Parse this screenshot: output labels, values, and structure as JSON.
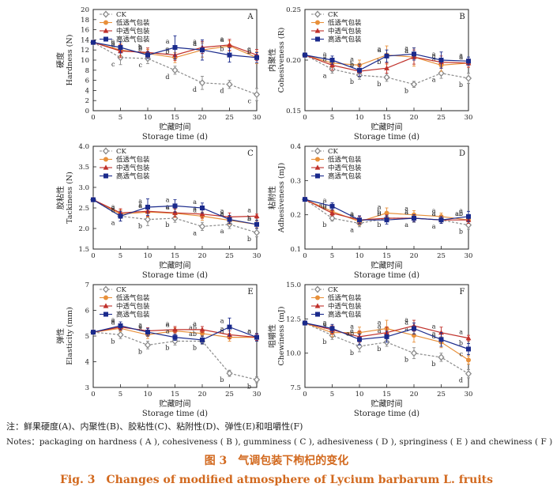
{
  "series_meta": [
    {
      "key": "ck",
      "name": "CK",
      "color": "#8a8a8a",
      "marker": "diamond",
      "dash": true
    },
    {
      "key": "low",
      "name": "低透气包装",
      "color": "#e8903a",
      "marker": "circle",
      "dash": false
    },
    {
      "key": "mid",
      "name": "中透气包装",
      "color": "#c0302a",
      "marker": "triangle",
      "dash": false
    },
    {
      "key": "high",
      "name": "高透气包装",
      "color": "#1a2a8c",
      "marker": "square",
      "dash": false
    }
  ],
  "chart_data": [
    {
      "type": "line",
      "panel": "A",
      "ylabel_cn": "硬度",
      "ylabel_en": "Hardness (N)",
      "xlabel_cn": "贮藏时间",
      "xlabel_en": "Storage time (d)",
      "x": [
        0,
        5,
        10,
        15,
        20,
        25,
        30
      ],
      "xticks": [
        "0",
        "5",
        "10",
        "15",
        "20",
        "25",
        "30"
      ],
      "ylim": [
        0,
        20
      ],
      "yticks": [
        "0",
        "2",
        "4",
        "6",
        "8",
        "10",
        "12",
        "14",
        "16",
        "18",
        "20"
      ],
      "yticks_values": [
        0,
        2,
        4,
        6,
        8,
        10,
        12,
        14,
        16,
        18,
        20
      ],
      "series": [
        {
          "values": [
            13.5,
            10.5,
            10.3,
            8.0,
            5.5,
            5.2,
            3.2
          ],
          "err": [
            0.3,
            1.4,
            1.0,
            0.8,
            1.3,
            0.8,
            1.2
          ],
          "letters": [
            "",
            "c",
            "c",
            "d",
            "d",
            "d",
            "c"
          ]
        },
        {
          "values": [
            13.5,
            12.0,
            11.3,
            10.5,
            12.0,
            12.8,
            10.5
          ],
          "err": [
            0.3,
            1.2,
            0.8,
            1.0,
            1.4,
            1.0,
            1.2
          ],
          "letters": [
            "",
            "b",
            "b",
            "b",
            "a",
            "a",
            "b"
          ]
        },
        {
          "values": [
            13.5,
            11.8,
            11.5,
            11.0,
            12.5,
            13.0,
            11.0
          ],
          "err": [
            0.3,
            1.3,
            0.9,
            1.1,
            1.2,
            1.1,
            1.1
          ],
          "letters": [
            "",
            "a",
            "a",
            "a",
            "a",
            "a",
            "a"
          ]
        },
        {
          "values": [
            13.5,
            12.5,
            11.0,
            12.5,
            12.0,
            11.0,
            10.5
          ],
          "err": [
            0.3,
            1.1,
            0.7,
            2.3,
            2.0,
            1.4,
            1.0
          ],
          "letters": [
            "",
            "a",
            "b",
            "a",
            "a",
            "b",
            "b"
          ]
        }
      ]
    },
    {
      "type": "line",
      "panel": "B",
      "ylabel_cn": "内聚性",
      "ylabel_en": "Cohesiveness (R)",
      "xlabel_cn": "贮藏时间",
      "xlabel_en": "Storage time (d)",
      "x": [
        0,
        5,
        10,
        15,
        20,
        25,
        30
      ],
      "xticks": [
        "0",
        "5",
        "10",
        "15",
        "20",
        "25",
        "30"
      ],
      "ylim": [
        0.15,
        0.25
      ],
      "yticks": [
        "0.15",
        "0.20",
        "0.25"
      ],
      "yticks_values": [
        0.15,
        0.2,
        0.25
      ],
      "series": [
        {
          "values": [
            0.205,
            0.191,
            0.185,
            0.183,
            0.176,
            0.187,
            0.182
          ],
          "err": [
            0.002,
            0.004,
            0.004,
            0.004,
            0.003,
            0.005,
            0.005
          ],
          "letters": [
            "",
            "a",
            "b",
            "b",
            "b",
            "a",
            "b"
          ]
        },
        {
          "values": [
            0.205,
            0.197,
            0.195,
            0.205,
            0.203,
            0.195,
            0.197
          ],
          "err": [
            0.002,
            0.004,
            0.005,
            0.009,
            0.009,
            0.006,
            0.004
          ],
          "letters": [
            "",
            "a",
            "a",
            "a",
            "a",
            "a",
            "a"
          ]
        },
        {
          "values": [
            0.205,
            0.195,
            0.189,
            0.192,
            0.203,
            0.198,
            0.197
          ],
          "err": [
            0.002,
            0.005,
            0.005,
            0.005,
            0.007,
            0.006,
            0.004
          ],
          "letters": [
            "",
            "a",
            "b",
            "b",
            "a",
            "a",
            "a"
          ]
        },
        {
          "values": [
            0.205,
            0.2,
            0.19,
            0.204,
            0.206,
            0.2,
            0.199
          ],
          "err": [
            0.002,
            0.004,
            0.006,
            0.006,
            0.006,
            0.008,
            0.004
          ],
          "letters": [
            "",
            "a",
            "b",
            "a",
            "a",
            "a",
            "a"
          ]
        }
      ]
    },
    {
      "type": "line",
      "panel": "C",
      "ylabel_cn": "胶粘性",
      "ylabel_en": "Tackiness (N)",
      "xlabel_cn": "贮藏时间",
      "xlabel_en": "Storage time (d)",
      "x": [
        0,
        5,
        10,
        15,
        20,
        25,
        30
      ],
      "xticks": [
        "0",
        "5",
        "10",
        "15",
        "20",
        "25",
        "30"
      ],
      "ylim": [
        1.5,
        4.0
      ],
      "yticks": [
        "1.5",
        "2.0",
        "2.5",
        "3.0",
        "3.5",
        "4.0"
      ],
      "yticks_values": [
        1.5,
        2.0,
        2.5,
        3.0,
        3.5,
        4.0
      ],
      "series": [
        {
          "values": [
            2.7,
            2.3,
            2.22,
            2.25,
            2.05,
            2.1,
            1.9
          ],
          "err": [
            0.02,
            0.12,
            0.15,
            0.1,
            0.1,
            0.1,
            0.1
          ],
          "letters": [
            "",
            "a",
            "b",
            "b",
            "a",
            "a",
            "b"
          ]
        },
        {
          "values": [
            2.7,
            2.35,
            2.4,
            2.37,
            2.3,
            2.2,
            2.1
          ],
          "err": [
            0.02,
            0.1,
            0.12,
            0.1,
            0.1,
            0.1,
            0.08
          ],
          "letters": [
            "",
            "a",
            "a",
            "a",
            "a",
            "a",
            "a"
          ]
        },
        {
          "values": [
            2.7,
            2.38,
            2.42,
            2.38,
            2.35,
            2.28,
            2.3
          ],
          "err": [
            0.02,
            0.1,
            0.12,
            0.1,
            0.1,
            0.1,
            0.05
          ],
          "letters": [
            "",
            "a",
            "a",
            "a",
            "a",
            "a",
            "a"
          ]
        },
        {
          "values": [
            2.7,
            2.3,
            2.52,
            2.55,
            2.5,
            2.22,
            2.1
          ],
          "err": [
            0.02,
            0.12,
            0.2,
            0.15,
            0.12,
            0.1,
            0.1
          ],
          "letters": [
            "",
            "a",
            "a",
            "a",
            "a",
            "a",
            "b"
          ]
        }
      ]
    },
    {
      "type": "line",
      "panel": "D",
      "ylabel_cn": "粘附性",
      "ylabel_en": "Adhesiveness (mJ)",
      "xlabel_cn": "贮藏时间",
      "xlabel_en": "Storage time (d)",
      "x": [
        0,
        5,
        10,
        15,
        20,
        25,
        30
      ],
      "xticks": [
        "0",
        "5",
        "10",
        "15",
        "20",
        "25",
        "30"
      ],
      "ylim": [
        0.1,
        0.4
      ],
      "yticks": [
        "0.1",
        "0.2",
        "0.3",
        "0.4"
      ],
      "yticks_values": [
        0.1,
        0.2,
        0.3,
        0.4
      ],
      "series": [
        {
          "values": [
            0.245,
            0.19,
            0.175,
            0.19,
            0.19,
            0.185,
            0.17
          ],
          "err": [
            0.003,
            0.008,
            0.01,
            0.01,
            0.012,
            0.01,
            0.012
          ],
          "letters": [
            "",
            "b",
            "a",
            "b",
            "a",
            "a",
            "b"
          ]
        },
        {
          "values": [
            0.245,
            0.21,
            0.18,
            0.205,
            0.2,
            0.195,
            0.185
          ],
          "err": [
            0.003,
            0.01,
            0.01,
            0.015,
            0.012,
            0.01,
            0.01
          ],
          "letters": [
            "",
            "ab",
            "a",
            "a",
            "a",
            "a",
            "ab"
          ]
        },
        {
          "values": [
            0.245,
            0.205,
            0.185,
            0.19,
            0.19,
            0.185,
            0.185
          ],
          "err": [
            0.003,
            0.008,
            0.01,
            0.01,
            0.01,
            0.01,
            0.01
          ],
          "letters": [
            "",
            "b",
            "a",
            "b",
            "a",
            "a",
            "ab"
          ]
        },
        {
          "values": [
            0.245,
            0.225,
            0.185,
            0.185,
            0.19,
            0.185,
            0.195
          ],
          "err": [
            0.003,
            0.01,
            0.012,
            0.012,
            0.01,
            0.01,
            0.015
          ],
          "letters": [
            "",
            "a",
            "a",
            "b",
            "a",
            "a",
            "a"
          ]
        }
      ]
    },
    {
      "type": "line",
      "panel": "E",
      "ylabel_cn": "弹性",
      "ylabel_en": "Elasticity (mm)",
      "xlabel_cn": "贮藏时间",
      "xlabel_en": "Storage time (d)",
      "x": [
        0,
        5,
        10,
        15,
        20,
        25,
        30
      ],
      "xticks": [
        "0",
        "5",
        "10",
        "15",
        "20",
        "25",
        "30"
      ],
      "ylim": [
        3,
        7
      ],
      "yticks": [
        "3",
        "4",
        "5",
        "6",
        "7"
      ],
      "yticks_values": [
        3,
        4,
        5,
        6,
        7
      ],
      "series": [
        {
          "values": [
            5.15,
            5.05,
            4.65,
            4.8,
            4.8,
            3.55,
            3.3
          ],
          "err": [
            0.05,
            0.15,
            0.15,
            0.15,
            0.12,
            0.12,
            0.12
          ],
          "letters": [
            "",
            "b",
            "b",
            "b",
            "b",
            "b",
            "b"
          ]
        },
        {
          "values": [
            5.15,
            5.3,
            5.05,
            5.2,
            5.1,
            4.95,
            4.95
          ],
          "err": [
            0.05,
            0.12,
            0.15,
            0.12,
            0.12,
            0.15,
            0.15
          ],
          "letters": [
            "",
            "a",
            "a",
            "a",
            "ab",
            "a",
            "a"
          ]
        },
        {
          "values": [
            5.15,
            5.35,
            5.2,
            5.25,
            5.25,
            5.05,
            4.95
          ],
          "err": [
            0.05,
            0.12,
            0.12,
            0.12,
            0.12,
            0.15,
            0.12
          ],
          "letters": [
            "",
            "a",
            "a",
            "a",
            "a",
            "a",
            "a"
          ]
        },
        {
          "values": [
            5.15,
            5.4,
            5.15,
            4.95,
            4.85,
            5.35,
            4.95
          ],
          "err": [
            0.05,
            0.15,
            0.15,
            0.12,
            0.15,
            0.35,
            0.15
          ],
          "letters": [
            "",
            "a",
            "a",
            "a",
            "ab",
            "a",
            "a"
          ]
        }
      ]
    },
    {
      "type": "line",
      "panel": "F",
      "ylabel_cn": "咀嚼性",
      "ylabel_en": "Chewiness (mJ)",
      "xlabel_cn": "贮藏时间",
      "xlabel_en": "Storage time (d)",
      "x": [
        0,
        5,
        10,
        15,
        20,
        25,
        30
      ],
      "xticks": [
        "0",
        "5",
        "10",
        "15",
        "20",
        "25",
        "30"
      ],
      "ylim": [
        7.5,
        15.0
      ],
      "yticks": [
        "7.5",
        "10.0",
        "12.5",
        "15.0"
      ],
      "yticks_values": [
        7.5,
        10.0,
        12.5,
        15.0
      ],
      "series": [
        {
          "values": [
            12.2,
            11.3,
            10.5,
            10.8,
            10.0,
            9.7,
            8.5
          ],
          "err": [
            0.1,
            0.3,
            0.4,
            0.3,
            0.4,
            0.3,
            0.3
          ],
          "letters": [
            "",
            "b",
            "b",
            "b",
            "b",
            "b",
            "d"
          ]
        },
        {
          "values": [
            12.2,
            11.5,
            11.5,
            11.8,
            11.3,
            10.8,
            9.5
          ],
          "err": [
            0.1,
            0.3,
            0.4,
            0.6,
            0.5,
            0.4,
            0.3
          ],
          "letters": [
            "",
            "a",
            "a",
            "a",
            "a",
            "a",
            "c"
          ]
        },
        {
          "values": [
            12.2,
            11.7,
            11.2,
            11.5,
            12.0,
            11.5,
            11.1
          ],
          "err": [
            0.1,
            0.3,
            0.4,
            0.4,
            0.4,
            0.4,
            0.2
          ],
          "letters": [
            "",
            "a",
            "a",
            "a",
            "a",
            "a",
            "a"
          ]
        },
        {
          "values": [
            12.2,
            11.8,
            11.0,
            11.2,
            11.8,
            11.0,
            10.3
          ],
          "err": [
            0.1,
            0.3,
            0.4,
            0.4,
            0.4,
            0.5,
            0.4
          ],
          "letters": [
            "",
            "a",
            "ab",
            "a",
            "a",
            "a",
            "b"
          ]
        }
      ]
    }
  ],
  "notes": {
    "line1": "注：鲜果硬度(A)、内聚性(B)、胶粘性(C)、粘附性(D)、弹性(E)和咀嚼性(F)",
    "line2": "Notes：packaging on hardness ( A ), cohesiveness ( B ), gumminess ( C ), adhesiveness ( D ), springiness ( E ) and chewiness ( F )"
  },
  "caption": {
    "cn": "图 3　气调包装下枸杞的变化",
    "en": "Fig. 3　Changes of modified atmosphere of Lycium barbarum L. fruits"
  }
}
